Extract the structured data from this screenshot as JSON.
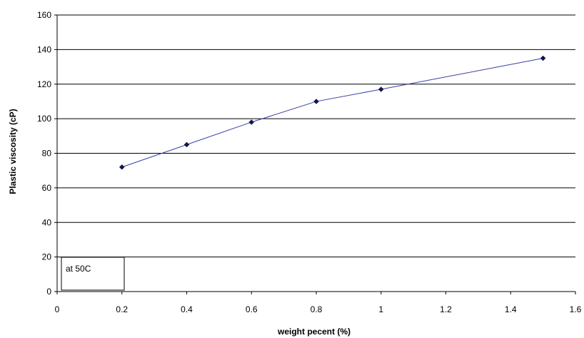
{
  "chart_data": {
    "type": "line",
    "title": "",
    "xlabel": "weight pecent (%)",
    "ylabel": "Plastic viscosity (cP)",
    "xlim": [
      0,
      1.6
    ],
    "ylim": [
      0,
      160
    ],
    "x_ticks": [
      "0",
      "0.2",
      "0.4",
      "0.6",
      "0.8",
      "1",
      "1.2",
      "1.4",
      "1.6"
    ],
    "y_ticks": [
      "0",
      "20",
      "40",
      "60",
      "80",
      "100",
      "120",
      "140",
      "160"
    ],
    "grid": "horizontal",
    "legend": "none",
    "annotation": "at 50C",
    "line_color": "#3b3fa6",
    "marker_color": "#0f1650",
    "grid_color": "#000000",
    "series": [
      {
        "x": [
          0.2,
          0.4,
          0.6,
          0.8,
          1.0,
          1.5
        ],
        "y": [
          72,
          85,
          98,
          110,
          117,
          135
        ]
      }
    ]
  }
}
